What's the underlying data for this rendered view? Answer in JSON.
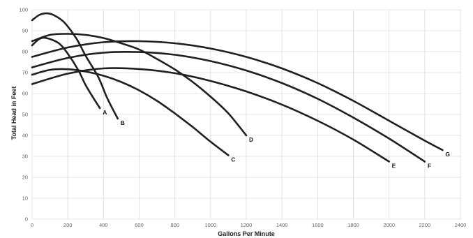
{
  "chart_data": {
    "type": "line",
    "xlabel": "Gallons Per Minute",
    "ylabel": "Total Head in Feet",
    "xlim": [
      0,
      2400
    ],
    "ylim": [
      0,
      100
    ],
    "xticks": [
      0,
      200,
      400,
      600,
      800,
      1000,
      1200,
      1400,
      1600,
      1800,
      2000,
      2200,
      2400
    ],
    "yticks": [
      0,
      10,
      20,
      30,
      40,
      50,
      60,
      70,
      80,
      90,
      100
    ],
    "grid": true,
    "series": [
      {
        "name": "A",
        "x": [
          0,
          40,
          80,
          150,
          200,
          260,
          300,
          350,
          380
        ],
        "y": [
          83,
          86,
          86.5,
          84,
          79,
          71,
          64,
          57,
          53
        ]
      },
      {
        "name": "B",
        "x": [
          0,
          40,
          80,
          120,
          180,
          250,
          300,
          370,
          420,
          480
        ],
        "y": [
          95,
          97.5,
          98.3,
          97.5,
          94,
          86,
          78,
          68,
          58,
          48
        ]
      },
      {
        "name": "C",
        "x": [
          0,
          100,
          200,
          300,
          400,
          500,
          600,
          700,
          800,
          900,
          1000,
          1100
        ],
        "y": [
          69,
          71.3,
          71.6,
          70.5,
          68.5,
          65.5,
          61.5,
          56.5,
          50.5,
          44,
          37,
          30.5
        ]
      },
      {
        "name": "D",
        "x": [
          0,
          100,
          200,
          300,
          400,
          500,
          600,
          700,
          800,
          900,
          1000,
          1100,
          1200
        ],
        "y": [
          85,
          88,
          88.5,
          88,
          86.5,
          84,
          81,
          76.5,
          71.5,
          65.5,
          58.5,
          50.5,
          40
        ]
      },
      {
        "name": "E",
        "x": [
          0,
          200,
          400,
          600,
          800,
          1000,
          1200,
          1400,
          1600,
          1800,
          2000
        ],
        "y": [
          64.5,
          69.5,
          72,
          71.7,
          69.7,
          66,
          61,
          54.7,
          47,
          38,
          27.5
        ]
      },
      {
        "name": "F",
        "x": [
          0,
          200,
          400,
          600,
          800,
          1000,
          1200,
          1400,
          1600,
          1800,
          2000,
          2200
        ],
        "y": [
          72.5,
          77,
          79.5,
          79.8,
          78.5,
          75.5,
          71,
          65,
          57.5,
          48.5,
          38.5,
          27.5
        ]
      },
      {
        "name": "G",
        "x": [
          0,
          200,
          400,
          600,
          800,
          1000,
          1200,
          1400,
          1600,
          1800,
          2000,
          2200,
          2300
        ],
        "y": [
          77.5,
          82,
          84.5,
          85,
          84,
          81.5,
          77.5,
          72,
          65,
          56.5,
          47,
          37.5,
          33
        ]
      }
    ]
  }
}
